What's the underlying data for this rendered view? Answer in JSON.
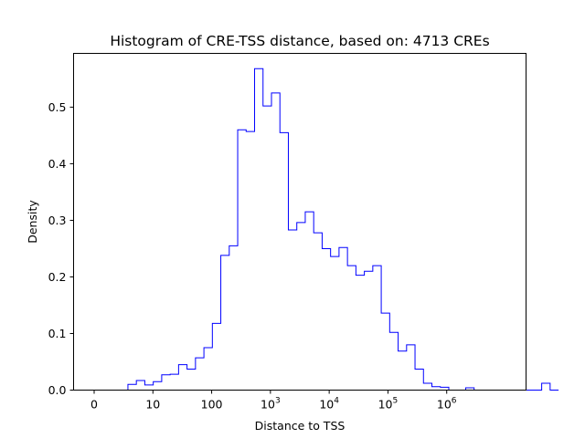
{
  "chart_data": {
    "type": "histogram",
    "title": "Histogram of CRE-TSS distance, based on: 4713 CREs",
    "xlabel": "Distance to TSS",
    "ylabel": "Density",
    "x_scale": "symlog (log10(1 + distance))",
    "xlim": [
      -0.35,
      7.35
    ],
    "ylim": [
      0,
      0.595
    ],
    "x_ticks": [
      {
        "value": 0,
        "base": "0",
        "exp": ""
      },
      {
        "value": 1,
        "base": "10",
        "exp": ""
      },
      {
        "value": 2,
        "base": "100",
        "exp": ""
      },
      {
        "value": 3,
        "base": "10",
        "exp": "3"
      },
      {
        "value": 4,
        "base": "10",
        "exp": "4"
      },
      {
        "value": 5,
        "base": "10",
        "exp": "5"
      },
      {
        "value": 6,
        "base": "10",
        "exp": "6"
      }
    ],
    "y_ticks": [
      "0.0",
      "0.1",
      "0.2",
      "0.3",
      "0.4",
      "0.5"
    ],
    "bin_width": 0.1437,
    "bin_start": 0.0,
    "densities": [
      0,
      0,
      0,
      0,
      0.01,
      0.017,
      0.009,
      0.015,
      0.027,
      0.028,
      0.045,
      0.037,
      0.057,
      0.075,
      0.118,
      0.238,
      0.255,
      0.46,
      0.457,
      0.568,
      0.502,
      0.525,
      0.455,
      0.283,
      0.296,
      0.315,
      0.278,
      0.25,
      0.236,
      0.252,
      0.22,
      0.203,
      0.21,
      0.22,
      0.136,
      0.102,
      0.069,
      0.08,
      0.037,
      0.012,
      0.006,
      0.005,
      0,
      0,
      0.004,
      0,
      0,
      0,
      0,
      0,
      0,
      0,
      0,
      0.012,
      0
    ],
    "color": "#0000ff",
    "grid": false,
    "legend": "none"
  }
}
